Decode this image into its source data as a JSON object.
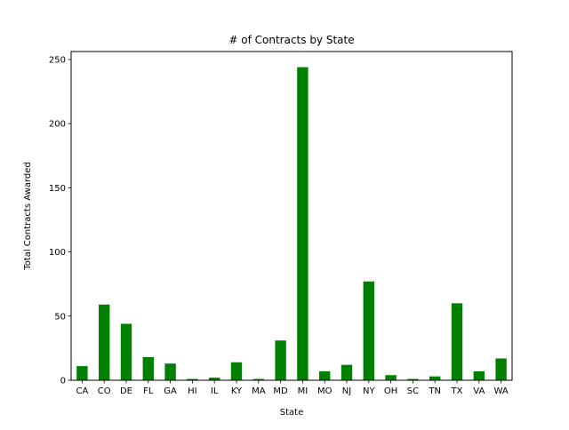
{
  "chart_data": {
    "type": "bar",
    "title": "# of Contracts by State",
    "xlabel": "State",
    "ylabel": "Total Contracts Awarded",
    "categories": [
      "CA",
      "CO",
      "DE",
      "FL",
      "GA",
      "HI",
      "IL",
      "KY",
      "MA",
      "MD",
      "MI",
      "MO",
      "NJ",
      "NY",
      "OH",
      "SC",
      "TN",
      "TX",
      "VA",
      "WA"
    ],
    "values": [
      11,
      59,
      44,
      18,
      13,
      1,
      2,
      14,
      1,
      31,
      244,
      7,
      12,
      77,
      4,
      1,
      3,
      60,
      7,
      17
    ],
    "ylim": [
      0,
      256.2
    ],
    "yticks": [
      0,
      50,
      100,
      150,
      200,
      250
    ],
    "bar_color": "#008000",
    "grid": false,
    "legend": false
  }
}
